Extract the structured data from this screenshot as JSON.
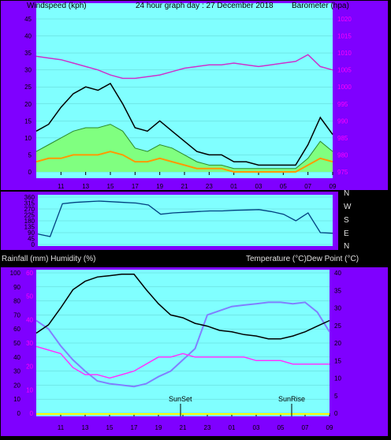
{
  "header": {
    "left": "Windspeed (kph)",
    "center": "24 hour graph day : 27 December 2018",
    "right": "Barometer (hpa)"
  },
  "lower_header": {
    "left": "Rainfall (mm)  Humidity (%)",
    "right": "Temperature (°C)Dew Point (°C)"
  },
  "compass": [
    "N",
    "W",
    "S",
    "E",
    "N"
  ],
  "markers": {
    "sunset": "SunSet",
    "sunrise": "SunRise"
  },
  "colors": {
    "panel_bg": "#7f00ff",
    "plot_bg": "#80ffff",
    "wind": "#000000",
    "wind_fill": "#80ff80",
    "wind_gust_orange": "#ff9900",
    "barometer": "#cc33cc",
    "direction": "#004080",
    "temperature": "#000000",
    "dew_point": "#ff33ff",
    "humidity": "#8080ff"
  },
  "chart_data": [
    {
      "type": "line",
      "title": "24 hour graph day : 27 December 2018",
      "ylabel": "Windspeed (kph)",
      "y2label": "Barometer (hpa)",
      "x_ticks": [
        "11",
        "13",
        "15",
        "17",
        "19",
        "21",
        "23",
        "01",
        "03",
        "05",
        "07",
        "09"
      ],
      "ylim": [
        0,
        45
      ],
      "y_ticks": [
        0,
        5,
        10,
        15,
        20,
        25,
        30,
        35,
        40,
        45
      ],
      "y2lim": [
        975,
        1020
      ],
      "y2_ticks": [
        975,
        980,
        985,
        990,
        995,
        1000,
        1005,
        1010,
        1015,
        1020
      ],
      "hours": [
        9,
        10,
        11,
        12,
        13,
        14,
        15,
        16,
        17,
        18,
        19,
        20,
        21,
        22,
        23,
        24,
        25,
        26,
        27,
        28,
        29,
        30,
        31,
        32,
        33
      ],
      "series": [
        {
          "values": [
            12,
            14,
            19,
            23,
            25,
            24,
            26,
            20,
            13,
            12,
            15,
            12,
            9,
            6,
            5,
            5,
            3,
            3,
            2,
            2,
            2,
            2,
            8,
            16,
            11
          ]
        },
        {
          "values": [
            6,
            8,
            10,
            12,
            13,
            13,
            14,
            12,
            7,
            6,
            8,
            7,
            5,
            3,
            2,
            2,
            1,
            1,
            1,
            1,
            1,
            1,
            4,
            9,
            6
          ]
        },
        {
          "values": [
            3,
            4,
            4,
            5,
            5,
            5,
            6,
            5,
            3,
            3,
            4,
            3,
            2,
            1,
            1,
            1,
            0,
            0,
            0,
            0,
            0,
            0,
            2,
            4,
            3
          ]
        },
        {
          "values": [
            1009,
            1008.5,
            1008,
            1007,
            1006,
            1005,
            1003.5,
            1002.5,
            1002.5,
            1003,
            1003.5,
            1004.5,
            1005.5,
            1006,
            1006.5,
            1006.5,
            1007,
            1006.5,
            1006,
            1006.5,
            1007,
            1007.5,
            1009.5,
            1006,
            1005
          ]
        }
      ]
    },
    {
      "type": "line",
      "yticks_labels": [
        "0",
        "45",
        "90",
        "135",
        "180",
        "225",
        "270",
        "315",
        "360"
      ],
      "ylim": [
        0,
        360
      ],
      "hours": [
        9,
        10,
        11,
        12,
        13,
        14,
        15,
        16,
        17,
        18,
        19,
        20,
        21,
        22,
        23,
        24,
        25,
        26,
        27,
        28,
        29,
        30,
        31,
        32,
        33
      ],
      "series": [
        {
          "values": [
            80,
            60,
            310,
            320,
            325,
            330,
            325,
            320,
            315,
            300,
            230,
            240,
            245,
            250,
            255,
            255,
            260,
            262,
            265,
            250,
            230,
            180,
            240,
            90,
            85
          ]
        }
      ]
    },
    {
      "type": "line",
      "ylabel": "Rainfall (mm)  Humidity (%)",
      "y2label": "Temperature (°C)Dew Point (°C)",
      "x_ticks": [
        "11",
        "13",
        "15",
        "17",
        "19",
        "21",
        "23",
        "01",
        "03",
        "05",
        "07",
        "09"
      ],
      "ylim": [
        0,
        100
      ],
      "y_ticks": [
        0,
        10,
        20,
        30,
        40,
        50,
        60,
        70,
        80,
        90,
        100
      ],
      "rain_ticks": [
        "0",
        "10",
        "20",
        "30",
        "40",
        "50",
        "60"
      ],
      "y2lim": [
        0,
        40
      ],
      "y2_ticks": [
        0,
        5,
        10,
        15,
        20,
        25,
        30,
        35,
        40
      ],
      "hours": [
        9,
        10,
        11,
        12,
        13,
        14,
        15,
        16,
        17,
        18,
        19,
        20,
        21,
        22,
        23,
        24,
        25,
        26,
        27,
        28,
        29,
        30,
        31,
        32,
        33
      ],
      "series": [
        {
          "values": [
            57,
            63,
            75,
            88,
            94,
            97,
            98,
            99,
            99,
            88,
            78,
            70,
            68,
            64,
            62,
            59,
            58,
            56,
            55,
            53,
            53,
            55,
            58,
            62,
            66
          ]
        },
        {
          "values": [
            66,
            60,
            48,
            38,
            30,
            23,
            21,
            20,
            19,
            21,
            26,
            30,
            38,
            46,
            70,
            73,
            76,
            77,
            78,
            79,
            79,
            78,
            79,
            72,
            58
          ]
        },
        {
          "values": [
            19,
            18,
            17,
            13,
            11,
            11,
            10,
            11,
            12,
            14,
            16,
            16,
            17,
            16,
            16,
            16,
            16,
            16,
            15,
            15,
            15,
            14,
            14,
            14,
            14
          ]
        }
      ]
    }
  ]
}
